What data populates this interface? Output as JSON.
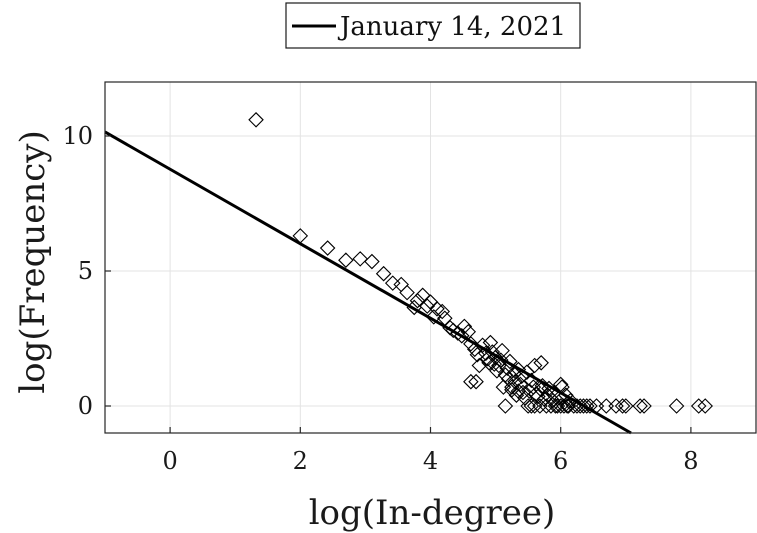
{
  "chart_data": {
    "type": "scatter",
    "xlabel": "log(In-degree)",
    "ylabel": "log(Frequency)",
    "xlim": [
      -1,
      9
    ],
    "ylim": [
      -1,
      12
    ],
    "xticks": [
      0,
      2,
      4,
      6,
      8
    ],
    "yticks": [
      0,
      5,
      10
    ],
    "xtick_labels": [
      "0",
      "2",
      "4",
      "6",
      "8"
    ],
    "ytick_labels": [
      "0",
      "5",
      "10"
    ],
    "grid": true,
    "legend": {
      "position": "top-center",
      "entries": [
        "January 14, 2021"
      ]
    },
    "colors": {
      "line": "#000000",
      "markers": "#000000",
      "grid": "#e3e3e3",
      "axes": "#262626"
    },
    "series": [
      {
        "name": "January 14, 2021",
        "type": "line",
        "x": [
          -1.0,
          7.08
        ],
        "y": [
          10.15,
          -1.0
        ]
      },
      {
        "type": "scatter",
        "marker": "diamond",
        "x": [
          1.32,
          2.0,
          2.42,
          2.7,
          2.92,
          3.1,
          3.28,
          3.42,
          3.55,
          3.64,
          3.75,
          3.8,
          3.88,
          3.95,
          4.0,
          4.05,
          4.1,
          4.18,
          4.22,
          4.3,
          4.35,
          4.42,
          4.48,
          4.52,
          4.58,
          4.62,
          4.68,
          4.72,
          4.75,
          4.8,
          4.85,
          4.88,
          4.9,
          4.92,
          4.95,
          4.98,
          5.0,
          5.02,
          5.05,
          5.08,
          5.1,
          5.12,
          5.15,
          5.18,
          5.2,
          5.22,
          5.25,
          5.28,
          5.3,
          5.32,
          5.35,
          5.38,
          5.4,
          5.42,
          5.45,
          5.48,
          5.5,
          5.52,
          5.55,
          5.58,
          5.6,
          5.62,
          5.65,
          5.68,
          5.7,
          5.72,
          5.75,
          5.78,
          5.8,
          5.82,
          5.85,
          5.88,
          5.9,
          5.92,
          5.95,
          5.98,
          6.0,
          6.02,
          6.05,
          6.08,
          6.1,
          6.12,
          6.15,
          6.2,
          6.25,
          6.3,
          6.35,
          6.4,
          6.45,
          6.55,
          6.7,
          6.85,
          6.95,
          7.0,
          7.22,
          7.28,
          7.78,
          8.12,
          8.22,
          4.62,
          5.25,
          5.6,
          5.7,
          5.55,
          6.0,
          5.15,
          4.7,
          5.35
        ],
        "y": [
          10.6,
          6.3,
          5.85,
          5.4,
          5.45,
          5.35,
          4.9,
          4.55,
          4.5,
          4.2,
          3.65,
          3.9,
          4.1,
          3.7,
          3.85,
          3.3,
          3.6,
          3.5,
          3.25,
          2.9,
          2.8,
          2.7,
          2.6,
          2.95,
          2.75,
          2.3,
          2.1,
          1.9,
          1.5,
          2.25,
          1.95,
          1.75,
          1.6,
          2.35,
          2.0,
          1.55,
          1.8,
          1.3,
          1.5,
          1.7,
          2.05,
          0.7,
          1.15,
          1.4,
          1.0,
          1.65,
          0.6,
          1.2,
          0.9,
          0.4,
          1.35,
          0.8,
          1.1,
          0.5,
          0.3,
          1.25,
          0.0,
          0.55,
          0.95,
          0.7,
          0.0,
          0.45,
          0.35,
          0.0,
          0.6,
          0.75,
          0.25,
          0.0,
          0.4,
          0.65,
          0.0,
          0.2,
          0.5,
          0.0,
          0.0,
          0.3,
          0.0,
          0.7,
          0.0,
          0.4,
          0.0,
          0.0,
          0.2,
          0.0,
          0.0,
          0.0,
          0.0,
          0.0,
          0.0,
          0.0,
          0.0,
          0.0,
          0.0,
          0.0,
          0.0,
          0.0,
          0.0,
          0.0,
          0.0,
          0.9,
          0.7,
          1.5,
          1.6,
          0.0,
          0.8,
          0.0,
          0.9,
          0.55
        ]
      }
    ]
  }
}
